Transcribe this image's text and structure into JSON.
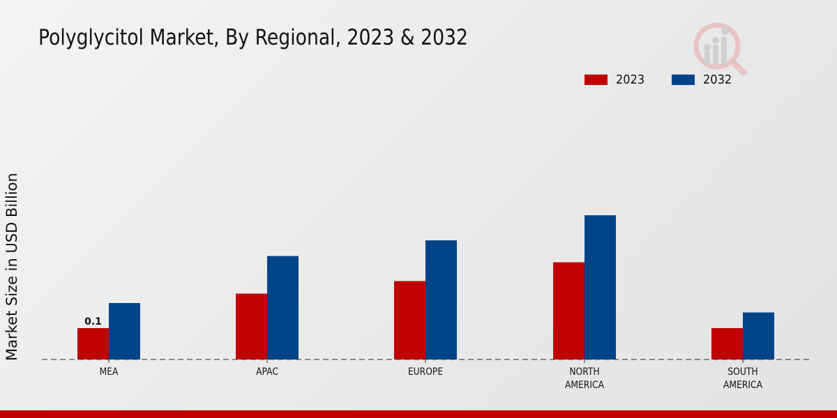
{
  "chart_data": {
    "type": "bar",
    "title": "Polyglycitol Market, By Regional, 2023 & 2032",
    "xlabel": "",
    "ylabel": "Market Size in USD Billion",
    "categories": [
      "MEA",
      "APAC",
      "EUROPE",
      "NORTH AMERICA",
      "SOUTH AMERICA"
    ],
    "category_lines": [
      [
        "MEA"
      ],
      [
        "APAC"
      ],
      [
        "EUROPE"
      ],
      [
        "NORTH",
        "AMERICA"
      ],
      [
        "SOUTH",
        "AMERICA"
      ]
    ],
    "series": [
      {
        "name": "2023",
        "color": "#c00000",
        "values": [
          0.1,
          0.21,
          0.25,
          0.31,
          0.1
        ]
      },
      {
        "name": "2032",
        "color": "#004488",
        "values": [
          0.18,
          0.33,
          0.38,
          0.46,
          0.15
        ]
      }
    ],
    "data_labels": [
      {
        "series": "2023",
        "category": "MEA",
        "text": "0.1"
      }
    ],
    "ylim": [
      0,
      0.55
    ],
    "grid": false,
    "baseline": "dashed",
    "legend_position": "top-right"
  },
  "legend": [
    {
      "label": "2023",
      "color": "#c00000"
    },
    {
      "label": "2032",
      "color": "#004488"
    }
  ],
  "logo": {
    "icon": "market-research-logo-icon"
  },
  "footer": {
    "accent_color": "#c00000"
  }
}
